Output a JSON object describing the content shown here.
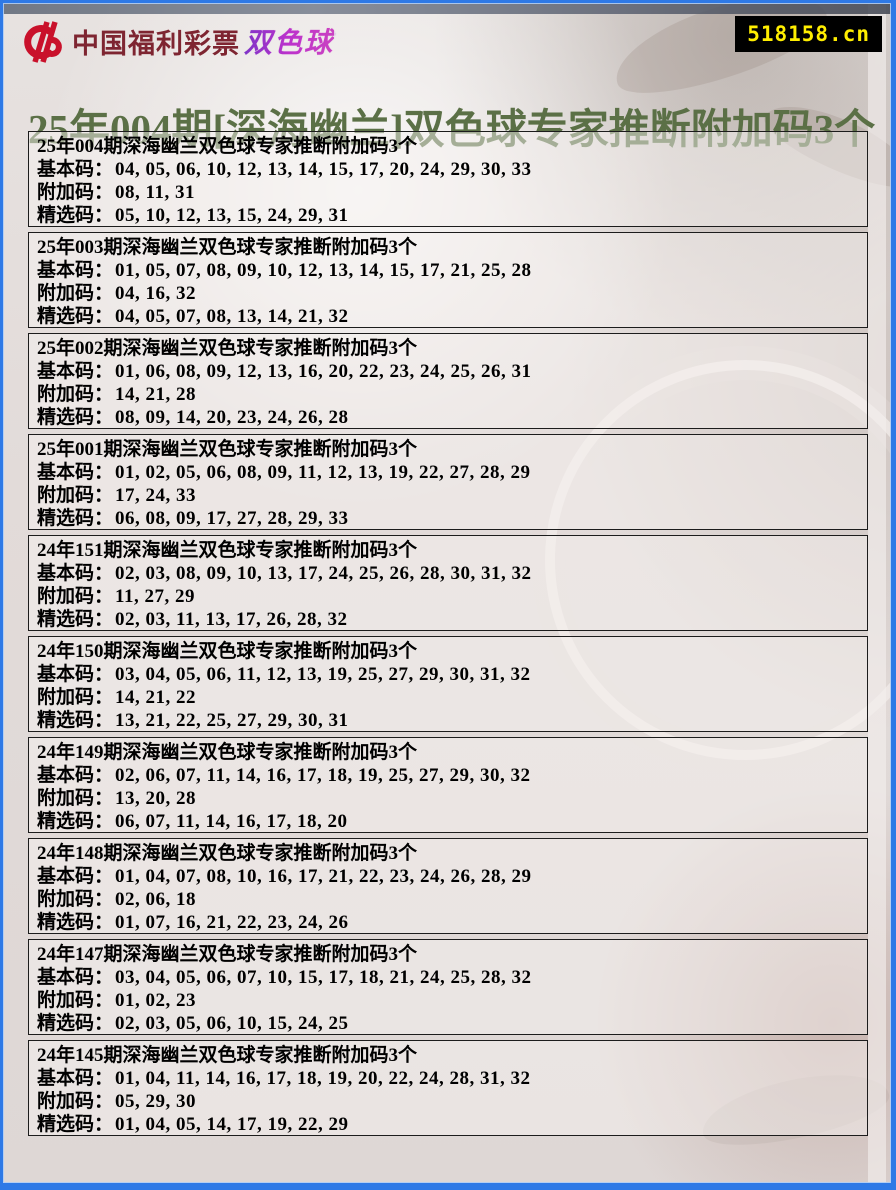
{
  "header": {
    "logo_text": "中国福利彩票",
    "logo_brand": "双色球",
    "badge": "518158.cn"
  },
  "page_title": "25年004期[深海幽兰]双色球专家推断附加码3个",
  "labels": {
    "basic": "基本码：",
    "addon": "附加码：",
    "selected": "精选码："
  },
  "colors": {
    "frame_blue": "#2e79e6",
    "badge_bg": "#000000",
    "badge_text": "#ffee00",
    "title_green": "#5b7046",
    "logo_red": "#c9112b",
    "logo_cn_maroon": "#7e2531",
    "brand_purple": "#a833cc",
    "block_border": "#1c1c1c"
  },
  "entries": [
    {
      "title": "25年004期深海幽兰双色球专家推断附加码3个",
      "basic": "04, 05, 06, 10, 12, 13, 14, 15, 17, 20, 24, 29, 30, 33",
      "addon": "08, 11, 31",
      "selected": "05, 10, 12, 13, 15, 24, 29, 31"
    },
    {
      "title": "25年003期深海幽兰双色球专家推断附加码3个",
      "basic": "01, 05, 07, 08, 09, 10, 12, 13, 14, 15, 17, 21, 25, 28",
      "addon": "04, 16, 32",
      "selected": "04, 05, 07, 08, 13, 14, 21, 32"
    },
    {
      "title": "25年002期深海幽兰双色球专家推断附加码3个",
      "basic": "01, 06, 08, 09, 12, 13, 16, 20, 22, 23, 24, 25, 26, 31",
      "addon": "14, 21, 28",
      "selected": "08, 09, 14, 20, 23, 24, 26, 28"
    },
    {
      "title": "25年001期深海幽兰双色球专家推断附加码3个",
      "basic": "01, 02, 05, 06, 08, 09, 11, 12, 13, 19, 22, 27, 28, 29",
      "addon": "17, 24, 33",
      "selected": "06, 08, 09, 17, 27, 28, 29, 33"
    },
    {
      "title": "24年151期深海幽兰双色球专家推断附加码3个",
      "basic": "02, 03, 08, 09, 10, 13, 17, 24, 25, 26, 28, 30, 31, 32",
      "addon": "11, 27, 29",
      "selected": "02, 03, 11, 13, 17, 26, 28, 32"
    },
    {
      "title": "24年150期深海幽兰双色球专家推断附加码3个",
      "basic": "03, 04, 05, 06, 11, 12, 13, 19, 25, 27, 29, 30, 31, 32",
      "addon": "14, 21, 22",
      "selected": "13, 21, 22, 25, 27, 29, 30, 31"
    },
    {
      "title": "24年149期深海幽兰双色球专家推断附加码3个",
      "basic": "02, 06, 07, 11, 14, 16, 17, 18, 19, 25, 27, 29, 30, 32",
      "addon": "13, 20, 28",
      "selected": "06, 07, 11, 14, 16, 17, 18, 20"
    },
    {
      "title": "24年148期深海幽兰双色球专家推断附加码3个",
      "basic": "01, 04, 07, 08, 10, 16, 17, 21, 22, 23, 24, 26, 28, 29",
      "addon": "02, 06, 18",
      "selected": "01, 07, 16, 21, 22, 23, 24, 26"
    },
    {
      "title": "24年147期深海幽兰双色球专家推断附加码3个",
      "basic": "03, 04, 05, 06, 07, 10, 15, 17, 18, 21, 24, 25, 28, 32",
      "addon": "01, 02, 23",
      "selected": "02, 03, 05, 06, 10, 15, 24, 25"
    },
    {
      "title": "24年145期深海幽兰双色球专家推断附加码3个",
      "basic": "01, 04, 11, 14, 16, 17, 18, 19, 20, 22, 24, 28, 31, 32",
      "addon": "05, 29, 30",
      "selected": "01, 04, 05, 14, 17, 19, 22, 29"
    }
  ]
}
